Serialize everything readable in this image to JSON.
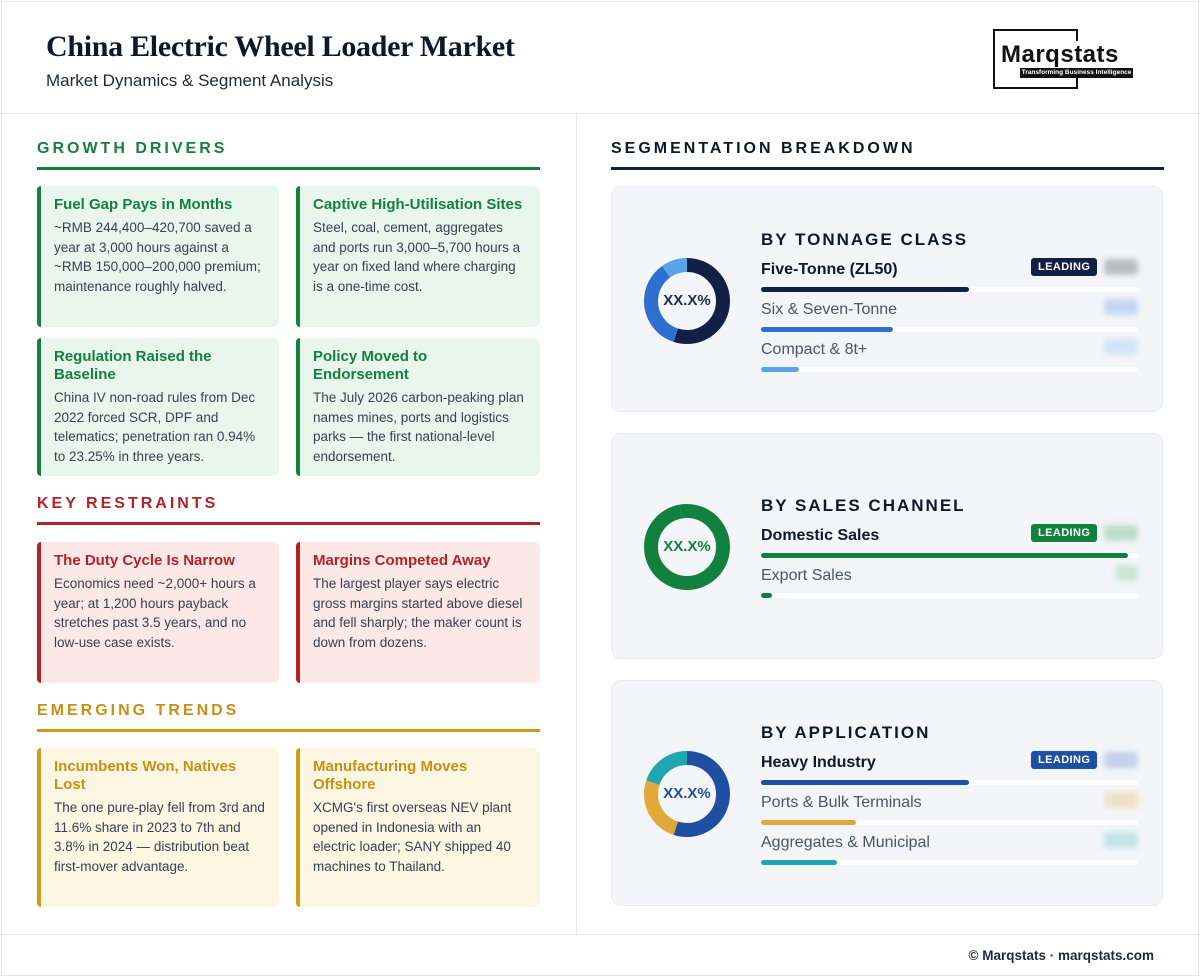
{
  "header": {
    "title": "China Electric Wheel Loader Market",
    "subtitle": "Market Dynamics & Segment Analysis",
    "logo_text": "Marqstats",
    "logo_tagline": "Transforming Business Intelligence"
  },
  "colors": {
    "drivers": "#15803d",
    "restraints": "#b42323",
    "trends": "#c98f10",
    "navy": "#132046",
    "blue": "#2f6fd0",
    "light_blue": "#5aa3e8",
    "green": "#12813f",
    "app_blue": "#1e4fa3",
    "app_gold": "#e0a93a",
    "app_teal": "#1fa6b0"
  },
  "drivers": {
    "title": "GROWTH DRIVERS",
    "cards": [
      {
        "title": "Fuel Gap Pays in Months",
        "text": "~RMB 244,400–420,700 saved a year at 3,000 hours against a ~RMB 150,000–200,000 premium; maintenance roughly halved."
      },
      {
        "title": "Captive High-Utilisation Sites",
        "text": "Steel, coal, cement, aggregates and ports run 3,000–5,700 hours a year on fixed land where charging is a one-time cost."
      },
      {
        "title": "Regulation Raised the Baseline",
        "text": "China IV non-road rules from Dec 2022 forced SCR, DPF and telematics; penetration ran 0.94% to 23.25% in three years."
      },
      {
        "title": "Policy Moved to Endorsement",
        "text": "The July 2026 carbon-peaking plan names mines, ports and logistics parks — the first national-level endorsement."
      }
    ]
  },
  "restraints": {
    "title": "KEY RESTRAINTS",
    "cards": [
      {
        "title": "The Duty Cycle Is Narrow",
        "text": "Economics need ~2,000+ hours a year; at 1,200 hours payback stretches past 3.5 years, and no low-use case exists."
      },
      {
        "title": "Margins Competed Away",
        "text": "The largest player says electric gross margins started above diesel and fell sharply; the maker count is down from dozens."
      }
    ]
  },
  "trends": {
    "title": "EMERGING TRENDS",
    "cards": [
      {
        "title": "Incumbents Won, Natives Lost",
        "text": "The one pure-play fell from 3rd and 11.6% share in 2023 to 7th and 3.8% in 2024 — distribution beat first-mover advantage."
      },
      {
        "title": "Manufacturing Moves Offshore",
        "text": "XCMG's first overseas NEV plant opened in Indonesia with an electric loader; SANY shipped 40 machines to Thailand."
      }
    ]
  },
  "segmentation": {
    "title": "SEGMENTATION BREAKDOWN",
    "leading_label": "LEADING",
    "donut_label": "XX.X%",
    "panels": [
      {
        "title": "BY TONNAGE CLASS",
        "items": [
          {
            "label": "Five-Tonne (ZL50)",
            "share": 0.55,
            "color": "#132046"
          },
          {
            "label": "Six & Seven-Tonne",
            "share": 0.35,
            "color": "#2f6fd0"
          },
          {
            "label": "Compact & 8t+",
            "share": 0.1,
            "color": "#5aa3e8"
          }
        ]
      },
      {
        "title": "BY SALES CHANNEL",
        "items": [
          {
            "label": "Domestic Sales",
            "share": 0.97,
            "color": "#12813f"
          },
          {
            "label": "Export Sales",
            "share": 0.03,
            "color": "#12813f"
          }
        ]
      },
      {
        "title": "BY APPLICATION",
        "items": [
          {
            "label": "Heavy Industry",
            "share": 0.55,
            "color": "#1e4fa3"
          },
          {
            "label": "Ports & Bulk Terminals",
            "share": 0.25,
            "color": "#e0a93a"
          },
          {
            "label": "Aggregates & Municipal",
            "share": 0.2,
            "color": "#1fa6b0"
          }
        ]
      }
    ]
  },
  "footer": {
    "text": "© Marqstats · marqstats.com"
  }
}
